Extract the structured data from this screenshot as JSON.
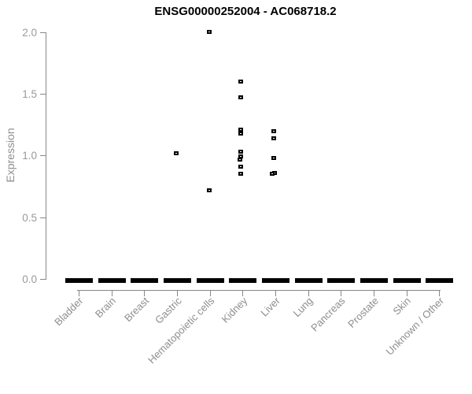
{
  "chart_data": {
    "type": "scatter",
    "subtype": "strip-plot",
    "title": "ENSG00000252004 - AC068718.2",
    "xlabel": "",
    "ylabel": "Expression",
    "ylim": [
      0.0,
      2.0
    ],
    "yticks": [
      0.0,
      0.5,
      1.0,
      1.5,
      2.0
    ],
    "ytick_labels": [
      "0.0",
      "0.5",
      "1.0",
      "1.5",
      "2.0"
    ],
    "grid": "off",
    "legend": "none",
    "categories": [
      "Bladder",
      "Brain",
      "Breast",
      "Gastric",
      "Hematopoietic cells",
      "Kidney",
      "Liver",
      "Lung",
      "Pancreas",
      "Prostate",
      "Skin",
      "Unknown / Other"
    ],
    "zero_value_dash": {
      "description": "thick black dash of overlapping points at expression 0 for every category",
      "value": 0.0,
      "categories_with_dash": [
        "Bladder",
        "Brain",
        "Breast",
        "Gastric",
        "Hematopoietic cells",
        "Kidney",
        "Liver",
        "Lung",
        "Pancreas",
        "Prostate",
        "Skin",
        "Unknown / Other"
      ]
    },
    "points": [
      {
        "category": "Gastric",
        "value": 1.02,
        "dx": -1
      },
      {
        "category": "Hematopoietic cells",
        "value": 2.0,
        "dx": -1
      },
      {
        "category": "Hematopoietic cells",
        "value": 0.72,
        "dx": -1
      },
      {
        "category": "Kidney",
        "value": 1.6,
        "dx": -2
      },
      {
        "category": "Kidney",
        "value": 1.47,
        "dx": -2
      },
      {
        "category": "Kidney",
        "value": 1.21,
        "dx": -2
      },
      {
        "category": "Kidney",
        "value": 1.18,
        "dx": -2
      },
      {
        "category": "Kidney",
        "value": 1.03,
        "dx": -2
      },
      {
        "category": "Kidney",
        "value": 0.99,
        "dx": -2
      },
      {
        "category": "Kidney",
        "value": 0.97,
        "dx": -3
      },
      {
        "category": "Kidney",
        "value": 0.91,
        "dx": -2
      },
      {
        "category": "Kidney",
        "value": 0.85,
        "dx": -2
      },
      {
        "category": "Liver",
        "value": 1.2,
        "dx": -2
      },
      {
        "category": "Liver",
        "value": 1.14,
        "dx": -2
      },
      {
        "category": "Liver",
        "value": 0.98,
        "dx": -2
      },
      {
        "category": "Liver",
        "value": 0.86,
        "dx": -1
      },
      {
        "category": "Liver",
        "value": 0.85,
        "dx": -4
      }
    ],
    "colors": {
      "point": "#000000",
      "zero_dash": "#000000",
      "axis": "#878787",
      "tick_label": "#9a9a9a",
      "category_label": "#8e8e8e",
      "title": "#000000",
      "background": "#ffffff"
    }
  }
}
